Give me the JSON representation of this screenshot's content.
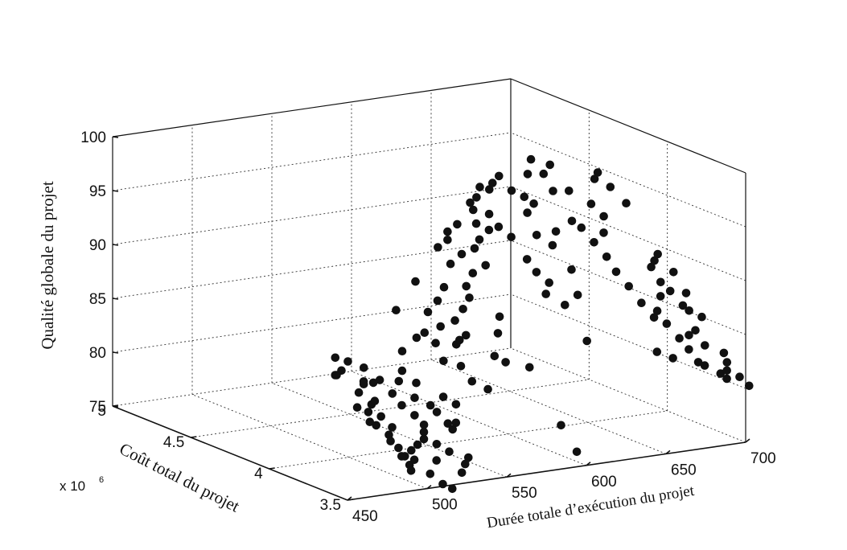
{
  "chart_data": {
    "type": "scatter",
    "projection": "3d",
    "title": "",
    "xlabel": "Durée totale d’exécution du projet",
    "ylabel": "Coût total du projet",
    "zlabel": "Qualité globale du projet",
    "y_multiplier": "x 10",
    "y_multiplier_exp": "6",
    "xlim": [
      450,
      700
    ],
    "ylim": [
      3.5,
      5
    ],
    "zlim": [
      75,
      100
    ],
    "grid": true,
    "x_ticks": [
      450,
      500,
      550,
      600,
      650,
      700
    ],
    "x_tick_labels": [
      "450",
      "500",
      "550",
      "600",
      "650",
      "700"
    ],
    "y_ticks": [
      3.5,
      4,
      4.5,
      5
    ],
    "y_tick_labels": [
      "3.5",
      "4",
      "4.5",
      "5"
    ],
    "z_ticks": [
      75,
      80,
      85,
      90,
      95,
      100
    ],
    "z_tick_labels": [
      "75",
      "80",
      "85",
      "90",
      "95",
      "100"
    ],
    "marker_color": "#111111",
    "points": [
      [
        455,
        3.62,
        85.8
      ],
      [
        460,
        3.64,
        86.0
      ],
      [
        458,
        3.66,
        85.5
      ],
      [
        462,
        3.7,
        86.8
      ],
      [
        466,
        3.66,
        86.6
      ],
      [
        470,
        3.6,
        85.0
      ],
      [
        465,
        3.58,
        84.2
      ],
      [
        468,
        3.55,
        82.5
      ],
      [
        472,
        3.57,
        83.0
      ],
      [
        475,
        3.54,
        82.0
      ],
      [
        476,
        3.5,
        80.5
      ],
      [
        480,
        3.52,
        81.0
      ],
      [
        482,
        3.55,
        79.5
      ],
      [
        484,
        3.52,
        79.0
      ],
      [
        486,
        3.5,
        78.3
      ],
      [
        488,
        3.49,
        77.5
      ],
      [
        490,
        3.48,
        78.0
      ],
      [
        492,
        3.52,
        78.6
      ],
      [
        494,
        3.5,
        79.2
      ],
      [
        496,
        3.48,
        79.8
      ],
      [
        498,
        3.5,
        80.3
      ],
      [
        500,
        3.52,
        80.8
      ],
      [
        478,
        3.62,
        84.6
      ],
      [
        484,
        3.64,
        84.6
      ],
      [
        488,
        3.6,
        83.5
      ],
      [
        490,
        3.56,
        82.6
      ],
      [
        494,
        3.62,
        84.4
      ],
      [
        500,
        3.66,
        85.0
      ],
      [
        505,
        3.62,
        84.0
      ],
      [
        508,
        3.56,
        82.2
      ],
      [
        512,
        3.56,
        81.5
      ],
      [
        515,
        3.52,
        80.6
      ],
      [
        518,
        3.52,
        80.0
      ],
      [
        522,
        3.54,
        80.4
      ],
      [
        520,
        3.6,
        82.5
      ],
      [
        526,
        3.58,
        81.8
      ],
      [
        475,
        3.58,
        83.2
      ],
      [
        470,
        3.52,
        81.4
      ],
      [
        482,
        3.48,
        78.5
      ],
      [
        486,
        3.46,
        77.2
      ],
      [
        496,
        3.44,
        76.8
      ],
      [
        502,
        3.46,
        77.8
      ],
      [
        506,
        3.5,
        79.0
      ],
      [
        498,
        3.56,
        81.5
      ],
      [
        502,
        3.6,
        82.8
      ],
      [
        504,
        3.7,
        86.5
      ],
      [
        510,
        3.8,
        89.6
      ],
      [
        515,
        3.72,
        87.4
      ],
      [
        522,
        3.74,
        87.6
      ],
      [
        525,
        3.7,
        86.8
      ],
      [
        535,
        3.64,
        84.8
      ],
      [
        538,
        3.7,
        86.4
      ],
      [
        528,
        3.68,
        85.2
      ],
      [
        540,
        3.62,
        83.4
      ],
      [
        548,
        3.6,
        82.6
      ],
      [
        530,
        3.8,
        89.0
      ],
      [
        532,
        3.9,
        91.2
      ],
      [
        540,
        3.84,
        89.6
      ],
      [
        545,
        3.78,
        88.0
      ],
      [
        548,
        3.74,
        86.8
      ],
      [
        552,
        3.8,
        88.8
      ],
      [
        558,
        3.82,
        89.6
      ],
      [
        560,
        3.86,
        90.4
      ],
      [
        562,
        3.7,
        84.8
      ],
      [
        565,
        3.66,
        84.4
      ],
      [
        570,
        3.76,
        86.4
      ],
      [
        575,
        3.8,
        87.6
      ],
      [
        580,
        3.66,
        83.6
      ],
      [
        552,
        3.96,
        93.6
      ],
      [
        560,
        3.98,
        94.0
      ],
      [
        562,
        4.0,
        94.6
      ],
      [
        565,
        3.94,
        92.8
      ],
      [
        570,
        4.02,
        95.0
      ],
      [
        575,
        3.96,
        93.0
      ],
      [
        580,
        3.98,
        93.6
      ],
      [
        584,
        4.06,
        95.8
      ],
      [
        586,
        4.1,
        96.2
      ],
      [
        590,
        4.1,
        96.6
      ],
      [
        594,
        4.06,
        95.2
      ],
      [
        596,
        4.02,
        94.2
      ],
      [
        600,
        3.98,
        93.4
      ],
      [
        604,
        3.92,
        91.6
      ],
      [
        606,
        3.88,
        90.6
      ],
      [
        612,
        3.86,
        89.6
      ],
      [
        616,
        3.8,
        87.8
      ],
      [
        622,
        3.72,
        84.8
      ],
      [
        626,
        3.82,
        88.4
      ],
      [
        590,
        3.56,
        78.6
      ],
      [
        594,
        3.5,
        76.4
      ],
      [
        610,
        3.86,
        88.6
      ],
      [
        600,
        4.12,
        97.0
      ],
      [
        604,
        4.14,
        97.4
      ],
      [
        610,
        4.16,
        97.8
      ],
      [
        614,
        4.12,
        96.6
      ],
      [
        620,
        4.1,
        96.0
      ],
      [
        624,
        4.08,
        95.4
      ],
      [
        628,
        4.16,
        97.6
      ],
      [
        634,
        4.2,
        98.6
      ],
      [
        638,
        4.16,
        97.4
      ],
      [
        640,
        4.12,
        96.0
      ],
      [
        644,
        4.04,
        93.6
      ],
      [
        648,
        4.02,
        93.0
      ],
      [
        652,
        3.98,
        91.8
      ],
      [
        656,
        3.94,
        90.6
      ],
      [
        660,
        4.0,
        92.4
      ],
      [
        664,
        4.04,
        93.6
      ],
      [
        668,
        4.14,
        96.4
      ],
      [
        672,
        4.16,
        96.8
      ],
      [
        676,
        4.12,
        95.6
      ],
      [
        682,
        4.08,
        94.2
      ],
      [
        658,
        3.9,
        89.4
      ],
      [
        662,
        3.86,
        88.2
      ],
      [
        666,
        3.82,
        86.8
      ],
      [
        670,
        3.78,
        85.6
      ],
      [
        674,
        3.8,
        86.0
      ],
      [
        680,
        3.84,
        87.0
      ],
      [
        684,
        3.88,
        88.0
      ],
      [
        688,
        3.86,
        87.2
      ],
      [
        692,
        3.82,
        86.0
      ],
      [
        694,
        3.76,
        84.0
      ],
      [
        676,
        3.76,
        85.0
      ],
      [
        680,
        3.72,
        83.8
      ],
      [
        684,
        3.7,
        82.8
      ],
      [
        688,
        3.74,
        83.8
      ],
      [
        696,
        3.72,
        82.8
      ],
      [
        690,
        3.66,
        81.4
      ],
      [
        698,
        3.64,
        80.6
      ],
      [
        700,
        3.62,
        80.2
      ],
      [
        702,
        3.64,
        80.8
      ],
      [
        704,
        3.66,
        81.4
      ],
      [
        708,
        3.62,
        80.2
      ],
      [
        712,
        3.6,
        79.4
      ],
      [
        694,
        3.8,
        85.6
      ],
      [
        700,
        3.78,
        85.0
      ],
      [
        682,
        3.92,
        89.2
      ],
      [
        686,
        3.94,
        89.6
      ],
      [
        690,
        3.96,
        90.0
      ],
      [
        694,
        3.9,
        88.6
      ],
      [
        674,
        3.7,
        82.2
      ],
      [
        686,
        3.66,
        81.8
      ],
      [
        500,
        3.4,
        76.0
      ],
      [
        504,
        3.38,
        75.6
      ],
      [
        512,
        3.4,
        76.8
      ],
      [
        516,
        3.42,
        77.4
      ],
      [
        520,
        3.44,
        77.8
      ],
      [
        476,
        3.66,
        85.8
      ],
      [
        472,
        3.62,
        84.6
      ],
      [
        462,
        3.56,
        83.0
      ],
      [
        466,
        3.52,
        81.8
      ],
      [
        508,
        3.44,
        78.6
      ],
      [
        534,
        3.76,
        87.8
      ],
      [
        542,
        3.72,
        86.6
      ],
      [
        546,
        3.86,
        90.6
      ],
      [
        556,
        3.92,
        92.2
      ],
      [
        568,
        3.9,
        91.2
      ],
      [
        578,
        3.92,
        91.6
      ],
      [
        582,
        4.02,
        94.8
      ],
      [
        588,
        4.0,
        94.2
      ],
      [
        596,
        4.14,
        97.2
      ],
      [
        618,
        4.06,
        94.8
      ],
      [
        632,
        4.02,
        93.0
      ],
      [
        644,
        4.18,
        98.0
      ],
      [
        650,
        4.12,
        95.8
      ],
      [
        660,
        4.08,
        94.6
      ],
      [
        698,
        3.86,
        86.8
      ],
      [
        706,
        3.7,
        82.0
      ],
      [
        664,
        3.7,
        83.0
      ],
      [
        630,
        3.9,
        90.2
      ],
      [
        622,
        3.94,
        92.4
      ],
      [
        614,
        3.96,
        93.4
      ]
    ]
  }
}
